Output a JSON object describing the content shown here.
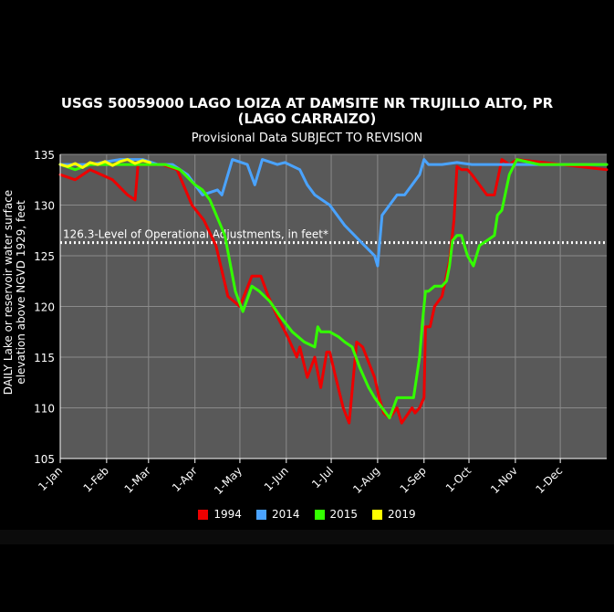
{
  "chart_data": {
    "type": "line",
    "title_line1": "USGS 50059000 LAGO LOIZA AT DAMSITE NR TRUJILLO ALTO, PR",
    "title_line2": "(LAGO CARRAIZO)",
    "subtitle": "Provisional Data SUBJECT TO REVISION",
    "ylabel_line1": "DAILY Lake or reservoir water surface",
    "ylabel_line2": "elevation above NGVD 1929, feet",
    "ylim": [
      105,
      135
    ],
    "yticks": [
      "105",
      "110",
      "115",
      "120",
      "125",
      "130",
      "135"
    ],
    "xlim": [
      0,
      365
    ],
    "xtick_labels": [
      "1-Jan",
      "1-Feb",
      "1-Mar",
      "1-Apr",
      "1-May",
      "1-Jun",
      "1-Jul",
      "1-Aug",
      "1-Sep",
      "1-Oct",
      "1-Nov",
      "1-Dec"
    ],
    "xtick_days": [
      0,
      31,
      59,
      90,
      120,
      151,
      181,
      212,
      243,
      273,
      304,
      334
    ],
    "grid": true,
    "reference_line": {
      "value": 126.3,
      "label": "126.3-Level of Operational Adjustments, in feet*",
      "color": "#ffffff"
    },
    "series": [
      {
        "name": "1994",
        "color": "#ee0000",
        "x": [
          0,
          10,
          20,
          35,
          45,
          50,
          52,
          60,
          68,
          78,
          88,
          96,
          104,
          112,
          120,
          128,
          134,
          139,
          145,
          152,
          158,
          160,
          165,
          170,
          174,
          178,
          180,
          184,
          189,
          193,
          198,
          202,
          210,
          213,
          216,
          220,
          225,
          228,
          235,
          237,
          240,
          243,
          244,
          247,
          250,
          255,
          260,
          263,
          265,
          268,
          272,
          275,
          280,
          285,
          290,
          295,
          300,
          305,
          365
        ],
        "y": [
          133,
          132.5,
          133.5,
          132.5,
          131,
          130.5,
          134,
          134,
          134,
          133.5,
          130,
          128.5,
          126,
          121,
          120,
          123,
          123,
          121,
          119,
          117,
          115,
          116,
          113,
          115,
          112,
          115.5,
          115.5,
          113,
          110,
          108.5,
          116.5,
          116,
          113,
          111,
          109.5,
          109,
          110,
          108.5,
          110,
          109.5,
          110,
          111,
          118,
          118,
          120,
          121,
          124.5,
          128.5,
          133.8,
          133.5,
          133.5,
          133,
          132,
          131,
          131,
          134.5,
          134,
          134.5,
          133.5
        ]
      },
      {
        "name": "2014",
        "color": "#4aa3ff",
        "x": [
          0,
          20,
          40,
          55,
          65,
          75,
          85,
          95,
          105,
          108,
          115,
          125,
          130,
          135,
          145,
          150,
          160,
          165,
          170,
          180,
          190,
          200,
          210,
          212,
          215,
          220,
          225,
          230,
          235,
          240,
          243,
          246,
          250,
          255,
          265,
          275,
          285,
          300,
          320,
          340,
          365
        ],
        "y": [
          134,
          134,
          134.5,
          134.5,
          134,
          134,
          133,
          131,
          131.5,
          131,
          134.5,
          134,
          132,
          134.5,
          134,
          134.2,
          133.5,
          132,
          131,
          130,
          128,
          126.5,
          125,
          124,
          129,
          130,
          131,
          131,
          132,
          133,
          134.5,
          134,
          134,
          134,
          134.2,
          134,
          134,
          134,
          134,
          134,
          134
        ]
      },
      {
        "name": "2015",
        "color": "#33ff00",
        "x": [
          0,
          10,
          20,
          30,
          40,
          50,
          60,
          70,
          80,
          90,
          95,
          100,
          110,
          117,
          122,
          128,
          133,
          140,
          147,
          155,
          163,
          170,
          172,
          174,
          180,
          186,
          190,
          195,
          200,
          206,
          210,
          215,
          220,
          225,
          228,
          230,
          233,
          236,
          240,
          242,
          244,
          246,
          250,
          255,
          258,
          260,
          262,
          265,
          268,
          272,
          276,
          280,
          285,
          290,
          292,
          295,
          300,
          305,
          320,
          340,
          365
        ],
        "y": [
          134,
          133.5,
          134,
          134,
          134,
          134,
          134,
          134,
          133.5,
          132,
          131.5,
          130.5,
          127,
          121.5,
          119.5,
          122,
          121.5,
          120.5,
          119,
          117.5,
          116.5,
          116,
          118,
          117.5,
          117.5,
          117,
          116.5,
          116,
          114,
          112,
          111,
          110,
          109,
          111,
          111,
          111,
          111,
          111,
          115,
          118.5,
          121.5,
          121.5,
          122,
          122,
          122.5,
          124,
          126.5,
          127,
          127,
          125,
          124,
          126,
          126.5,
          127,
          129,
          129.5,
          133,
          134.5,
          134,
          134,
          134
        ]
      },
      {
        "name": "2019",
        "color": "#ffff00",
        "x": [
          0,
          5,
          10,
          15,
          20,
          25,
          30,
          35,
          40,
          45,
          50,
          55,
          60
        ],
        "y": [
          134,
          133.8,
          134.1,
          133.7,
          134.2,
          134,
          134.3,
          133.9,
          134.3,
          134.5,
          134.1,
          134.4,
          134.2
        ]
      }
    ]
  }
}
